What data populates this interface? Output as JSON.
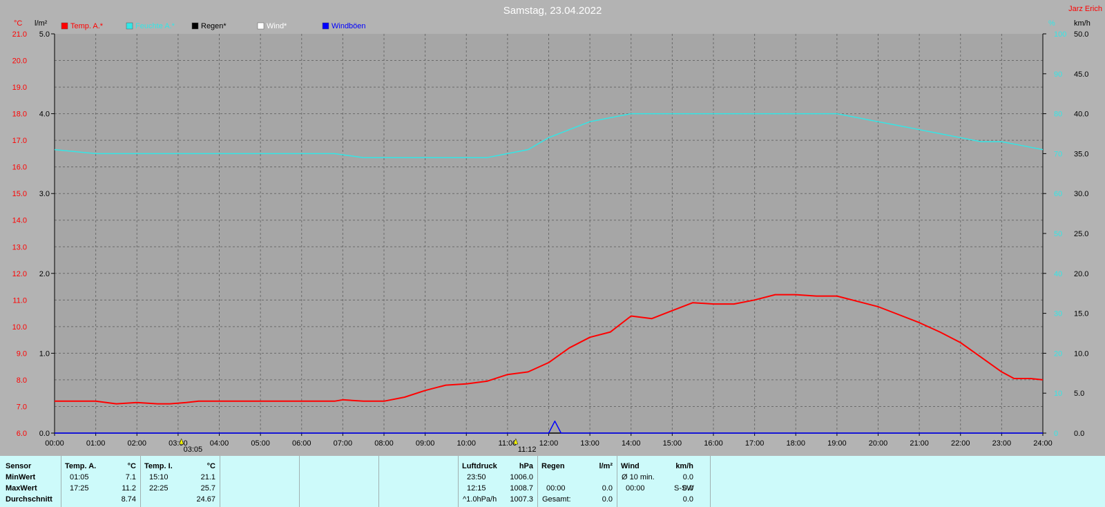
{
  "chart_data": {
    "type": "line",
    "title": "Samstag, 23.04.2022",
    "station": "Jarz Erich",
    "unit_left_temp": "°C",
    "unit_left_rain": "l/m²",
    "unit_right_hum": "%",
    "unit_right_wind": "km/h",
    "legend": [
      {
        "label": "Temp. A.*",
        "color": "#ff0000"
      },
      {
        "label": "Feuchte A.*",
        "color": "#33e6e6"
      },
      {
        "label": "Regen*",
        "color": "#000000"
      },
      {
        "label": "Wind*",
        "color": "#ffffff"
      },
      {
        "label": "Windböen",
        "color": "#0000ff"
      }
    ],
    "temp_ticks": [
      "21.0",
      "20.0",
      "19.0",
      "18.0",
      "17.0",
      "16.0",
      "15.0",
      "14.0",
      "13.0",
      "12.0",
      "11.0",
      "10.0",
      "9.0",
      "8.0",
      "7.0",
      "6.0"
    ],
    "rain_ticks": [
      "5.0",
      "4.0",
      "3.0",
      "2.0",
      "1.0",
      "0.0"
    ],
    "hum_ticks": [
      "100",
      "90",
      "80",
      "70",
      "60",
      "50",
      "40",
      "30",
      "20",
      "10",
      "0"
    ],
    "wind_ticks": [
      "50.0",
      "45.0",
      "40.0",
      "35.0",
      "30.0",
      "25.0",
      "20.0",
      "15.0",
      "10.0",
      "5.0",
      "0.0"
    ],
    "x_ticks": [
      "00:00",
      "01:00",
      "02:00",
      "03:00",
      "04:00",
      "05:00",
      "06:00",
      "07:00",
      "08:00",
      "09:00",
      "10:00",
      "11:00",
      "12:00",
      "13:00",
      "14:00",
      "15:00",
      "16:00",
      "17:00",
      "18:00",
      "19:00",
      "20:00",
      "21:00",
      "22:00",
      "23:00",
      "24:00"
    ],
    "temp_ylim": [
      6,
      21
    ],
    "hum_ylim": [
      0,
      100
    ],
    "wind_ylim": [
      0,
      50
    ],
    "markers": [
      {
        "time": 3.08,
        "label": "03:05"
      },
      {
        "time": 11.2,
        "label": "11:12"
      }
    ],
    "series": [
      {
        "name": "Temp. A.*",
        "color": "#ff0000",
        "x": [
          0,
          0.5,
          1.0,
          1.5,
          2.0,
          2.5,
          2.8,
          3.2,
          3.5,
          4,
          5,
          6,
          6.8,
          7,
          7.5,
          8,
          8.5,
          9,
          9.5,
          10,
          10.5,
          11,
          11.5,
          12,
          12.5,
          13,
          13.5,
          14,
          14.5,
          15,
          15.5,
          16,
          16.5,
          17,
          17.5,
          18,
          18.5,
          19,
          19.5,
          20,
          20.5,
          21,
          21.5,
          22,
          22.5,
          23,
          23.3,
          23.7,
          24
        ],
        "values": [
          7.2,
          7.2,
          7.2,
          7.1,
          7.15,
          7.1,
          7.1,
          7.15,
          7.2,
          7.2,
          7.2,
          7.2,
          7.2,
          7.25,
          7.2,
          7.2,
          7.35,
          7.6,
          7.8,
          7.85,
          7.95,
          8.2,
          8.3,
          8.65,
          9.2,
          9.6,
          9.8,
          10.4,
          10.3,
          10.6,
          10.9,
          10.85,
          10.85,
          11.0,
          11.2,
          11.2,
          11.15,
          11.15,
          10.95,
          10.75,
          10.45,
          10.15,
          9.8,
          9.4,
          8.85,
          8.3,
          8.05,
          8.05,
          8.0
        ]
      },
      {
        "name": "Feuchte A.*",
        "color": "#33e6e6",
        "x": [
          0,
          1,
          2,
          3,
          4,
          5,
          6,
          6.8,
          7.5,
          8.5,
          9.5,
          10.5,
          11.0,
          11.5,
          12,
          12.5,
          13,
          13.5,
          14,
          15,
          16,
          17,
          18,
          19,
          19.5,
          20,
          20.5,
          21,
          21.5,
          22,
          22.5,
          23,
          23.5,
          24
        ],
        "values": [
          71,
          70,
          70,
          70,
          70,
          70,
          70,
          70,
          69,
          69,
          69,
          69,
          70,
          71,
          74,
          76,
          78,
          79,
          80,
          80,
          80,
          80,
          80,
          80,
          79,
          78,
          77,
          76,
          75,
          74,
          73,
          73,
          72,
          71
        ]
      },
      {
        "name": "Windböen",
        "color": "#0000ff",
        "x": [
          0,
          12.0,
          12.15,
          12.3,
          24
        ],
        "values": [
          0,
          0,
          1.5,
          0,
          0
        ]
      }
    ],
    "table": {
      "sensor": {
        "header": "Sensor",
        "rows": [
          "MinWert",
          "MaxWert",
          "Durchschnitt"
        ]
      },
      "temp_a": {
        "header": "Temp. A.",
        "unit": "°C",
        "times": [
          "01:05",
          "17:25",
          ""
        ],
        "values": [
          "7.1",
          "11.2",
          "8.74"
        ]
      },
      "temp_i": {
        "header": "Temp. I.",
        "unit": "°C",
        "times": [
          "15:10",
          "22:25",
          ""
        ],
        "values": [
          "21.1",
          "25.7",
          "24.67"
        ]
      },
      "pressure": {
        "header": "Luftdruck",
        "unit": "hPa",
        "times": [
          "23:50",
          "12:15",
          "^1.0hPa/h"
        ],
        "values": [
          "1006.0",
          "1008.7",
          "1007.3"
        ]
      },
      "rain": {
        "header": "Regen",
        "unit": "l/m²",
        "times": [
          "",
          "00:00",
          "Gesamt:"
        ],
        "values": [
          "",
          "0.0",
          "0.0"
        ]
      },
      "wind": {
        "header": "Wind",
        "unit": "km/h",
        "times": [
          "Ø 10 min.",
          "00:00",
          ""
        ],
        "dirs": [
          "",
          "S-SW",
          ""
        ],
        "values": [
          "0.0",
          "0.0",
          "0.0"
        ]
      }
    }
  }
}
